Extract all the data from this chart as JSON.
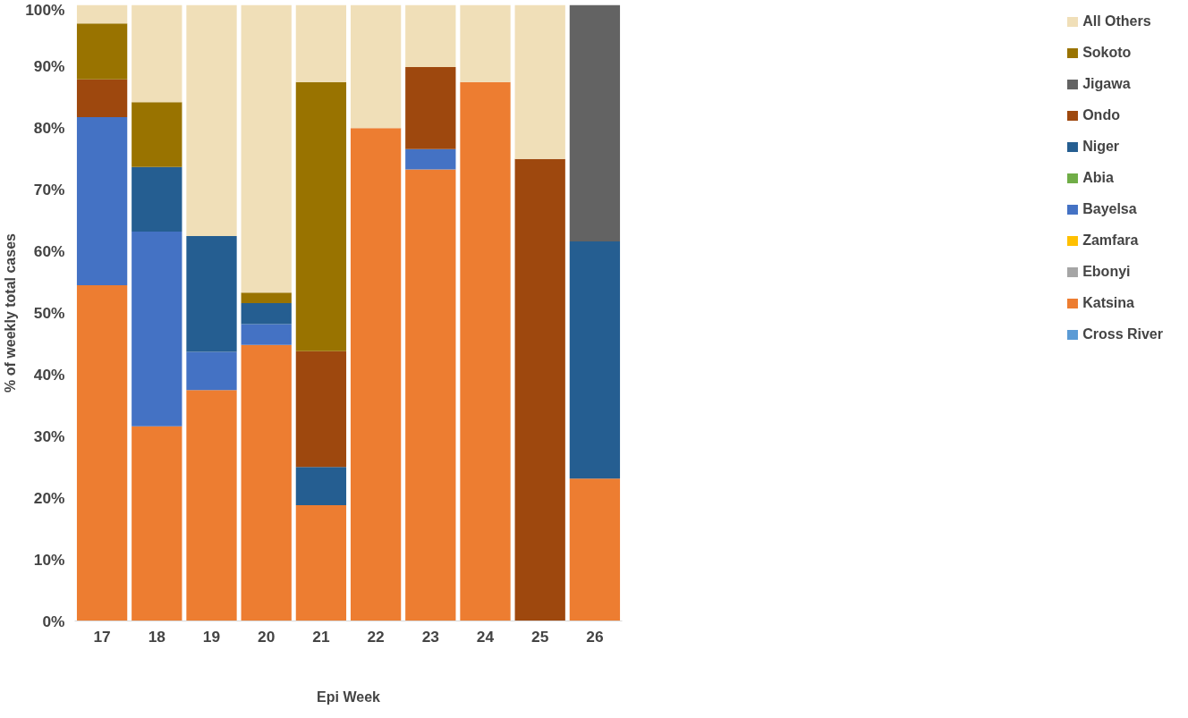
{
  "chart_data": {
    "type": "bar",
    "stacked": true,
    "xlabel": "Epi Week",
    "ylabel": "% of weekly total cases",
    "categories": [
      "17",
      "18",
      "19",
      "20",
      "21",
      "22",
      "23",
      "24",
      "25",
      "26"
    ],
    "ylim": [
      0,
      100
    ],
    "yticks": [
      {
        "value": 0,
        "label": "0%"
      },
      {
        "value": 10,
        "label": "10%"
      },
      {
        "value": 20,
        "label": "20%"
      },
      {
        "value": 30,
        "label": "30%"
      },
      {
        "value": 40,
        "label": "40%"
      },
      {
        "value": 50,
        "label": "50%"
      },
      {
        "value": 60,
        "label": "60%"
      },
      {
        "value": 70,
        "label": "70%"
      },
      {
        "value": 80,
        "label": "80%"
      },
      {
        "value": 90,
        "label": "90%"
      },
      {
        "value": 100,
        "label": "100%"
      }
    ],
    "grid": false,
    "legend": "right",
    "series": [
      {
        "name": "Cross River",
        "color": "#5b9bd5",
        "values": [
          0,
          0,
          0,
          0,
          0,
          0,
          0,
          0,
          0,
          0
        ]
      },
      {
        "name": "Katsina",
        "color": "#ed7d31",
        "values": [
          54.5,
          31.6,
          37.5,
          44.8,
          18.8,
          80,
          73.3,
          87.5,
          0,
          23.1
        ]
      },
      {
        "name": "Ebonyi",
        "color": "#a5a5a5",
        "values": [
          0,
          0,
          0,
          0,
          0,
          0,
          0,
          0,
          0,
          0
        ]
      },
      {
        "name": "Zamfara",
        "color": "#ffc000",
        "values": [
          0,
          0,
          0,
          0,
          0,
          0,
          0,
          0,
          0,
          0
        ]
      },
      {
        "name": "Bayelsa",
        "color": "#4472c4",
        "values": [
          27.3,
          31.6,
          6.2,
          3.4,
          0,
          0,
          3.3,
          0,
          0,
          0
        ]
      },
      {
        "name": "Abia",
        "color": "#70ad47",
        "values": [
          0,
          0,
          0,
          0,
          0,
          0,
          0,
          0,
          0,
          0
        ]
      },
      {
        "name": "Niger",
        "color": "#255e91",
        "values": [
          0,
          10.5,
          18.8,
          3.4,
          6.2,
          0,
          0,
          0,
          0,
          38.5
        ]
      },
      {
        "name": "Ondo",
        "color": "#9e480e",
        "values": [
          6.1,
          0,
          0,
          0,
          18.8,
          0,
          13.3,
          0,
          75,
          0
        ]
      },
      {
        "name": "Jigawa",
        "color": "#636363",
        "values": [
          0,
          0,
          0,
          0,
          0,
          0,
          0,
          0,
          0,
          38.4
        ]
      },
      {
        "name": "Sokoto",
        "color": "#997300",
        "values": [
          9.1,
          10.5,
          0,
          1.7,
          43.7,
          0,
          0,
          0,
          0,
          0
        ]
      },
      {
        "name": "All Others",
        "color": "#f0dfb8",
        "values": [
          3.0,
          15.8,
          37.5,
          46.7,
          12.5,
          20,
          10.1,
          12.5,
          25,
          0
        ]
      }
    ]
  }
}
